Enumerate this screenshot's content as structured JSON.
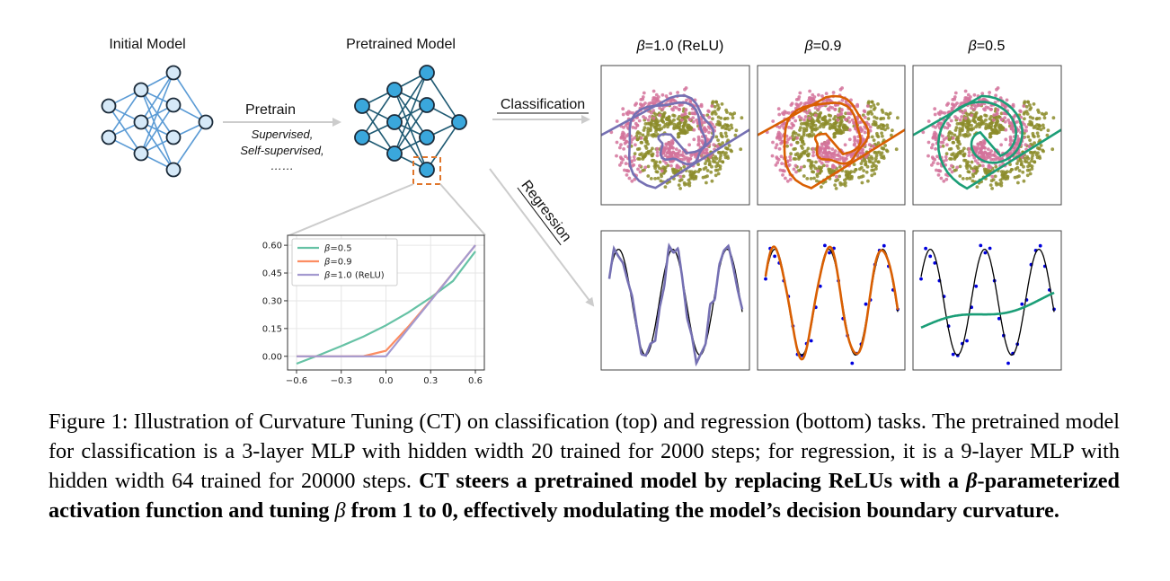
{
  "figure": {
    "initial_model_label": "Initial Model",
    "pretrained_model_label": "Pretrained Model",
    "pretrain_label": "Pretrain",
    "pretrain_sub1": "Supervised,",
    "pretrain_sub2": "Self-supervised,",
    "pretrain_sub3": "……",
    "classification_label": "Classification",
    "regression_label": "Regression",
    "panel_titles": [
      {
        "beta": "β",
        "rest": "=1.0 (ReLU)",
        "color": "#7570b3"
      },
      {
        "beta": "β",
        "rest": "=0.9",
        "color": "#d95f02"
      },
      {
        "beta": "β",
        "rest": "=0.5",
        "color": "#1b9e77"
      }
    ],
    "colors": {
      "net_initial": "#5b9bd5",
      "net_initial_fill": "#d6e9f8",
      "net_pretrained": "#1f5a73",
      "net_pretrained_fill": "#3aa7dc",
      "zoom_box": "#e0762b",
      "arrow": "#cccccc",
      "class_a": "#d4739b",
      "class_b": "#8c8c2a",
      "reg_points": "#0000dd"
    }
  },
  "chart_data": {
    "type": "line",
    "title": "",
    "xlabel": "",
    "ylabel": "",
    "xlim": [
      -0.6,
      0.6
    ],
    "ylim": [
      -0.04,
      0.62
    ],
    "x_ticks": [
      "−0.6",
      "−0.3",
      "0.0",
      "0.3",
      "0.6"
    ],
    "y_ticks": [
      "0.00",
      "0.15",
      "0.30",
      "0.45",
      "0.60"
    ],
    "grid": true,
    "legend_position": "top-left",
    "x": [
      -0.6,
      -0.45,
      -0.3,
      -0.15,
      0.0,
      0.15,
      0.3,
      0.45,
      0.6
    ],
    "series": [
      {
        "name": "β=0.5",
        "legend_beta": "β",
        "legend_rest": "=0.5",
        "color": "#66c2a5",
        "values": [
          -0.04,
          0.006,
          0.055,
          0.107,
          0.167,
          0.237,
          0.317,
          0.407,
          0.567
        ]
      },
      {
        "name": "β=0.9",
        "legend_beta": "β",
        "legend_rest": "=0.9",
        "color": "#fc8d62",
        "values": [
          0.0,
          0.0,
          0.0,
          0.001,
          0.03,
          0.16,
          0.302,
          0.451,
          0.6
        ]
      },
      {
        "name": "β=1.0 (ReLU)",
        "legend_beta": "β",
        "legend_rest": "=1.0 (ReLU)",
        "color": "#a49ad0",
        "values": [
          0.0,
          0.0,
          0.0,
          0.0,
          0.0,
          0.15,
          0.3,
          0.45,
          0.6
        ]
      }
    ]
  },
  "caption": {
    "part1": "Figure 1: Illustration of Curvature Tuning (CT) on classification (top) and regression (bottom) tasks. The pretrained model for classification is a 3-layer MLP with hidden width 20 trained for 2000 steps; for regression, it is a 9-layer MLP with hidden width 64 trained for 20000 steps. ",
    "bold1": "CT steers a pretrained model by replacing ReLUs with a ",
    "beta1": "β",
    "bold2": "-parameterized activation function and tuning ",
    "beta2": "β",
    "bold3": " from 1 to 0, effectively modulating the model’s decision boundary curvature."
  }
}
